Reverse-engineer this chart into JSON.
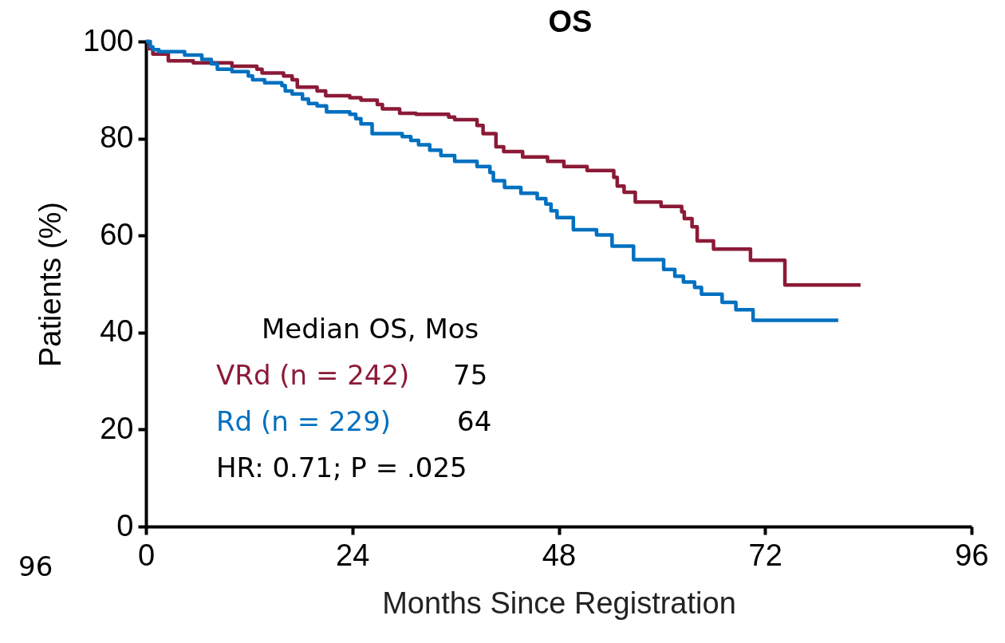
{
  "chart_data": {
    "type": "step",
    "title": "OS",
    "xlabel": "Months Since Registration",
    "ylabel": "Patients (%)",
    "xlim": [
      0,
      96
    ],
    "xticks": [
      0,
      24,
      48,
      72,
      96
    ],
    "ylim": [
      0,
      100
    ],
    "yticks": [
      0,
      20,
      40,
      60,
      80,
      100
    ],
    "grid": false,
    "legend": "bottom left",
    "marker": "none",
    "line_style": "solid",
    "series": [
      {
        "name": "VRd (n = 242)",
        "color": "#8b1a37",
        "x": [
          0,
          0.3,
          0.8,
          2.6,
          5.5,
          10,
          12.9,
          13.5,
          16,
          17,
          17.6,
          19.9,
          20.9,
          23.7,
          25,
          26.9,
          27.5,
          29.5,
          31.4,
          35.2,
          35.9,
          38.5,
          39.2,
          40.7,
          41.6,
          43.8,
          46.7,
          48.6,
          51.3,
          54.4,
          54.8,
          55.6,
          56.9,
          59.9,
          62.3,
          62.6,
          63.5,
          64.1,
          66,
          70.3,
          74.3,
          83.1
        ],
        "values": [
          100,
          98.5,
          97.4,
          96,
          95.6,
          94.9,
          94.3,
          93.5,
          92.9,
          92.1,
          90.6,
          89.8,
          88.8,
          88.4,
          87.9,
          87,
          86.1,
          85.2,
          85,
          84.4,
          83.9,
          82.7,
          81,
          78.3,
          77.3,
          76.2,
          75.3,
          74.2,
          73.4,
          72,
          70.2,
          68.9,
          66.9,
          66,
          64.9,
          63.5,
          61.8,
          58.9,
          57.2,
          54.9,
          49.8,
          49.8
        ]
      },
      {
        "name": "Rd (n = 229)",
        "color": "#0070c0",
        "x": [
          0,
          0.5,
          0.8,
          1.5,
          4.5,
          6.5,
          7.6,
          8.3,
          10,
          11.9,
          12.4,
          13.8,
          15.8,
          16.2,
          17,
          18.2,
          18.9,
          19.9,
          21,
          23.7,
          24.4,
          25,
          26.3,
          29.8,
          30.8,
          31.7,
          33,
          34.3,
          35.9,
          38.5,
          40,
          40.4,
          41.7,
          43.6,
          45.5,
          46.5,
          47.1,
          47.8,
          49.7,
          52.4,
          54.2,
          56.7,
          60.2,
          61.5,
          62.5,
          63.8,
          64.6,
          67,
          68.6,
          70.6,
          80.5
        ],
        "values": [
          100,
          98.9,
          98.3,
          97.9,
          97.2,
          96.3,
          95.4,
          94.3,
          93.8,
          92.9,
          92.1,
          91.5,
          90.9,
          89.8,
          89.2,
          88.1,
          87.2,
          86.7,
          85.5,
          85,
          84.1,
          83,
          81,
          80.4,
          79.6,
          78.7,
          77.6,
          76.5,
          75.3,
          74.2,
          73,
          71.3,
          69.9,
          68.7,
          67.6,
          66.5,
          65.1,
          63.7,
          61.2,
          60.1,
          57.8,
          55,
          53,
          51.6,
          50.4,
          49.3,
          47.9,
          46.2,
          44.7,
          42.5,
          42.5
        ]
      }
    ],
    "annotations": [
      "Median OS, Mos",
      "75",
      "64",
      "HR: 0.71; P = .025",
      "96"
    ]
  }
}
